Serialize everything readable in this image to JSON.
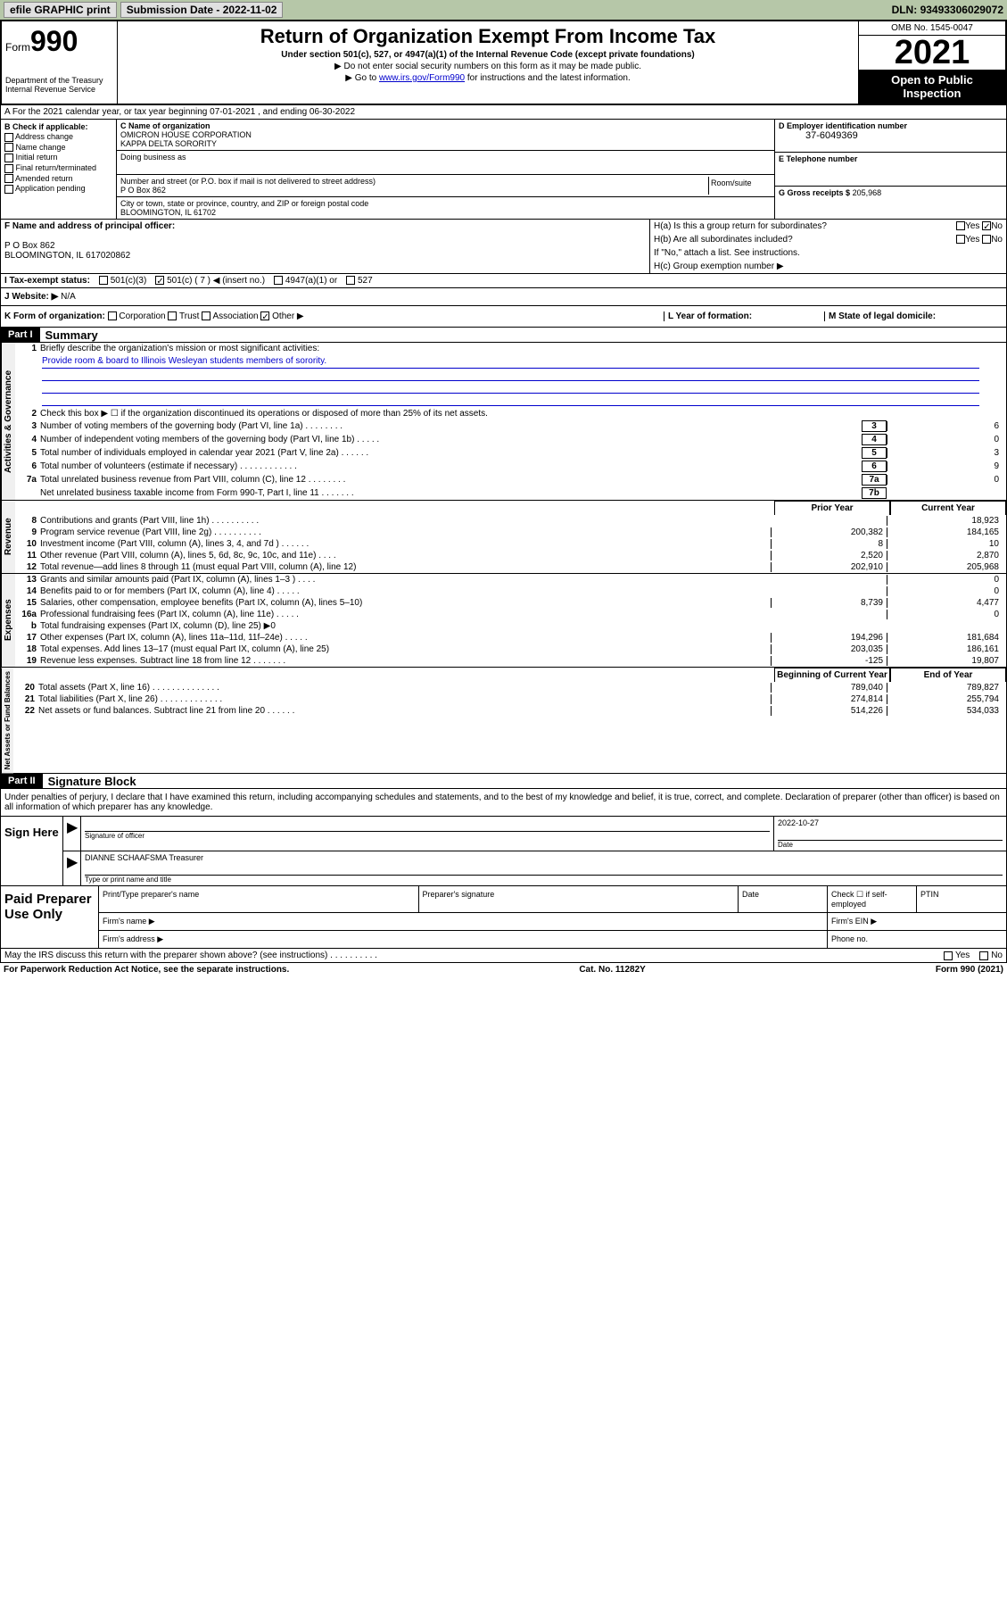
{
  "topbar": {
    "efile": "efile GRAPHIC print",
    "subdate_label": "Submission Date - ",
    "subdate": "2022-11-02",
    "dln_label": "DLN: ",
    "dln": "93493306029072"
  },
  "header": {
    "form_prefix": "Form",
    "form_num": "990",
    "dept": "Department of the Treasury\nInternal Revenue Service",
    "title": "Return of Organization Exempt From Income Tax",
    "sub": "Under section 501(c), 527, or 4947(a)(1) of the Internal Revenue Code (except private foundations)",
    "note1": "▶ Do not enter social security numbers on this form as it may be made public.",
    "note2_pre": "▶ Go to ",
    "note2_link": "www.irs.gov/Form990",
    "note2_post": " for instructions and the latest information.",
    "omb": "OMB No. 1545-0047",
    "year": "2021",
    "open": "Open to Public Inspection"
  },
  "a": {
    "text": "A For the 2021 calendar year, or tax year beginning 07-01-2021   , and ending 06-30-2022"
  },
  "b": {
    "label": "B Check if applicable:",
    "opts": [
      "Address change",
      "Name change",
      "Initial return",
      "Final return/terminated",
      "Amended return",
      "Application pending"
    ]
  },
  "c": {
    "name_label": "C Name of organization",
    "name": "OMICRON HOUSE CORPORATION\nKAPPA DELTA SORORITY",
    "dba_label": "Doing business as",
    "addr_label": "Number and street (or P.O. box if mail is not delivered to street address)",
    "addr": "P O Box 862",
    "room_label": "Room/suite",
    "city_label": "City or town, state or province, country, and ZIP or foreign postal code",
    "city": "BLOOMINGTON, IL  61702"
  },
  "d": {
    "label": "D Employer identification number",
    "val": "37-6049369"
  },
  "e": {
    "label": "E Telephone number",
    "val": ""
  },
  "g": {
    "label": "G Gross receipts $",
    "val": "205,968"
  },
  "f": {
    "label": "F  Name and address of principal officer:",
    "addr1": "P O Box 862",
    "addr2": "BLOOMINGTON, IL  617020862"
  },
  "h": {
    "a_label": "H(a)  Is this a group return for subordinates?",
    "a_yes": "Yes",
    "a_no": "No",
    "b_label": "H(b)  Are all subordinates included?",
    "b_note": "If \"No,\" attach a list. See instructions.",
    "c_label": "H(c)  Group exemption number ▶"
  },
  "i": {
    "label": "I  Tax-exempt status:",
    "o1": "501(c)(3)",
    "o2": "501(c) ( 7 ) ◀ (insert no.)",
    "o3": "4947(a)(1) or",
    "o4": "527"
  },
  "j": {
    "label": "J  Website: ▶",
    "val": "N/A"
  },
  "k": {
    "label": "K Form of organization:",
    "opts": [
      "Corporation",
      "Trust",
      "Association",
      "Other ▶"
    ]
  },
  "l": {
    "label": "L Year of formation:"
  },
  "m": {
    "label": "M State of legal domicile:"
  },
  "part1": {
    "hdr": "Part I",
    "title": "Summary"
  },
  "gov": {
    "tab": "Activities & Governance",
    "l1": "Briefly describe the organization's mission or most significant activities:",
    "l1v": "Provide room & board to Illinois Wesleyan students members of sorority.",
    "l2": "Check this box ▶ ☐  if the organization discontinued its operations or disposed of more than 25% of its net assets.",
    "rows": [
      {
        "n": "3",
        "t": "Number of voting members of the governing body (Part VI, line 1a)   .    .    .    .    .    .    .    .",
        "b": "3",
        "v": "6"
      },
      {
        "n": "4",
        "t": "Number of independent voting members of the governing body (Part VI, line 1b)    .    .    .    .    .",
        "b": "4",
        "v": "0"
      },
      {
        "n": "5",
        "t": "Total number of individuals employed in calendar year 2021 (Part V, line 2a)    .    .    .    .    .    .",
        "b": "5",
        "v": "3"
      },
      {
        "n": "6",
        "t": "Total number of volunteers (estimate if necessary)    .    .    .    .    .    .    .    .    .    .    .    .",
        "b": "6",
        "v": "9"
      },
      {
        "n": "7a",
        "t": "Total unrelated business revenue from Part VIII, column (C), line 12    .    .    .    .    .    .    .    .",
        "b": "7a",
        "v": "0"
      },
      {
        "n": "",
        "t": "Net unrelated business taxable income from Form 990-T, Part I, line 11    .    .    .    .    .    .    .",
        "b": "7b",
        "v": ""
      }
    ]
  },
  "rev": {
    "tab": "Revenue",
    "h1": "Prior Year",
    "h2": "Current Year",
    "rows": [
      {
        "n": "8",
        "t": "Contributions and grants (Part VIII, line 1h)    .    .    .    .    .    .    .    .    .    .",
        "c1": "",
        "c2": "18,923"
      },
      {
        "n": "9",
        "t": "Program service revenue (Part VIII, line 2g)    .    .    .    .    .    .    .    .    .    .",
        "c1": "200,382",
        "c2": "184,165"
      },
      {
        "n": "10",
        "t": "Investment income (Part VIII, column (A), lines 3, 4, and 7d )    .    .    .    .    .    .",
        "c1": "8",
        "c2": "10"
      },
      {
        "n": "11",
        "t": "Other revenue (Part VIII, column (A), lines 5, 6d, 8c, 9c, 10c, and 11e)    .    .    .    .",
        "c1": "2,520",
        "c2": "2,870"
      },
      {
        "n": "12",
        "t": "Total revenue—add lines 8 through 11 (must equal Part VIII, column (A), line 12)",
        "c1": "202,910",
        "c2": "205,968"
      }
    ]
  },
  "exp": {
    "tab": "Expenses",
    "rows": [
      {
        "n": "13",
        "t": "Grants and similar amounts paid (Part IX, column (A), lines 1–3 )    .    .    .    .",
        "c1": "",
        "c2": "0"
      },
      {
        "n": "14",
        "t": "Benefits paid to or for members (Part IX, column (A), line 4)    .    .    .    .    .",
        "c1": "",
        "c2": "0"
      },
      {
        "n": "15",
        "t": "Salaries, other compensation, employee benefits (Part IX, column (A), lines 5–10)",
        "c1": "8,739",
        "c2": "4,477"
      },
      {
        "n": "16a",
        "t": "Professional fundraising fees (Part IX, column (A), line 11e)    .    .    .    .    .",
        "c1": "",
        "c2": "0"
      },
      {
        "n": "b",
        "t": "Total fundraising expenses (Part IX, column (D), line 25) ▶0",
        "c1": "shade",
        "c2": "shade"
      },
      {
        "n": "17",
        "t": "Other expenses (Part IX, column (A), lines 11a–11d, 11f–24e)    .    .    .    .    .",
        "c1": "194,296",
        "c2": "181,684"
      },
      {
        "n": "18",
        "t": "Total expenses. Add lines 13–17 (must equal Part IX, column (A), line 25)",
        "c1": "203,035",
        "c2": "186,161"
      },
      {
        "n": "19",
        "t": "Revenue less expenses. Subtract line 18 from line 12    .    .    .    .    .    .    .",
        "c1": "-125",
        "c2": "19,807"
      }
    ]
  },
  "net": {
    "tab": "Net Assets or Fund Balances",
    "h1": "Beginning of Current Year",
    "h2": "End of Year",
    "rows": [
      {
        "n": "20",
        "t": "Total assets (Part X, line 16)    .    .    .    .    .    .    .    .    .    .    .    .    .    .",
        "c1": "789,040",
        "c2": "789,827"
      },
      {
        "n": "21",
        "t": "Total liabilities (Part X, line 26)    .    .    .    .    .    .    .    .    .    .    .    .    .",
        "c1": "274,814",
        "c2": "255,794"
      },
      {
        "n": "22",
        "t": "Net assets or fund balances. Subtract line 21 from line 20    .    .    .    .    .    .",
        "c1": "514,226",
        "c2": "534,033"
      }
    ]
  },
  "part2": {
    "hdr": "Part II",
    "title": "Signature Block"
  },
  "sig": {
    "intro": "Under penalties of perjury, I declare that I have examined this return, including accompanying schedules and statements, and to the best of my knowledge and belief, it is true, correct, and complete. Declaration of preparer (other than officer) is based on all information of which preparer has any knowledge.",
    "sign_here": "Sign Here",
    "sig_of": "Signature of officer",
    "date_label": "Date",
    "date": "2022-10-27",
    "name": "DIANNE SCHAAFSMA Treasurer",
    "name_label": "Type or print name and title"
  },
  "paid": {
    "label": "Paid Preparer Use Only",
    "h1": "Print/Type preparer's name",
    "h2": "Preparer's signature",
    "h3": "Date",
    "h4_pre": "Check ☐ if self-employed",
    "h5": "PTIN",
    "firm_name": "Firm's name    ▶",
    "firm_ein": "Firm's EIN ▶",
    "firm_addr": "Firm's address ▶",
    "phone": "Phone no."
  },
  "footer": {
    "discuss": "May the IRS discuss this return with the preparer shown above? (see instructions)    .    .    .    .    .    .    .    .    .    .",
    "yes": "Yes",
    "no": "No",
    "pra": "For Paperwork Reduction Act Notice, see the separate instructions.",
    "cat": "Cat. No. 11282Y",
    "form": "Form 990 (2021)"
  }
}
